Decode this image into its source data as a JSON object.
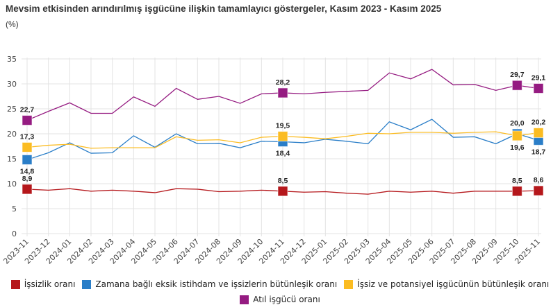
{
  "title": "Mevsim etkisinden arındırılmış işgücüne ilişkin tamamlayıcı göstergeler, Kasım 2023 - Kasım 2025",
  "unit": "(%)",
  "chart_data": {
    "type": "line",
    "title": "Mevsim etkisinden arındırılmış işgücüne ilişkin tamamlayıcı göstergeler, Kasım 2023 - Kasım 2025",
    "ylabel": "(%)",
    "ylim": [
      0,
      35
    ],
    "yticks": [
      0,
      5,
      10,
      15,
      20,
      25,
      30,
      35
    ],
    "grid": true,
    "legend_position": "bottom",
    "x": [
      "2023-11",
      "2023-12",
      "2024-01",
      "2024-02",
      "2024-03",
      "2024-04",
      "2024-05",
      "2024-06",
      "2024-07",
      "2024-08",
      "2024-09",
      "2024-10",
      "2024-11",
      "2024-12",
      "2025-01",
      "2025-02",
      "2025-03",
      "2025-04",
      "2025-05",
      "2025-06",
      "2025-07",
      "2025-08",
      "2025-09",
      "2025-10",
      "2025-11"
    ],
    "labeled_indices": [
      0,
      12,
      23,
      24
    ],
    "series": [
      {
        "name": "İşsizlik oranı",
        "color": "#b5171b",
        "label_side": [
          "above",
          "above",
          "above",
          "above"
        ],
        "values": [
          8.9,
          8.7,
          9.0,
          8.5,
          8.7,
          8.5,
          8.2,
          9.0,
          8.9,
          8.4,
          8.5,
          8.7,
          8.5,
          8.3,
          8.4,
          8.1,
          7.9,
          8.5,
          8.3,
          8.5,
          8.1,
          8.5,
          8.5,
          8.5,
          8.6
        ],
        "labels": [
          "8,9",
          "8,5",
          "8,5",
          "8,6"
        ]
      },
      {
        "name": "Zamana bağlı eksik istihdam ve işsizlerin bütünleşik oranı",
        "color": "#2a7ec8",
        "label_side": [
          "below",
          "below",
          "above",
          "below"
        ],
        "values": [
          14.8,
          16.2,
          18.2,
          16.1,
          16.2,
          19.6,
          17.3,
          20.0,
          18.0,
          18.1,
          17.2,
          18.5,
          18.4,
          18.2,
          18.9,
          18.5,
          18.0,
          22.4,
          20.8,
          22.9,
          19.3,
          19.4,
          18.0,
          20.0,
          18.7
        ],
        "labels": [
          "14,8",
          "18,4",
          "20,0",
          "18,7"
        ]
      },
      {
        "name": "İşsiz ve potansiyel işgücünün bütünleşik oranı",
        "color": "#fbbc22",
        "label_side": [
          "above",
          "above",
          "below",
          "above"
        ],
        "values": [
          17.3,
          17.7,
          17.9,
          17.1,
          17.2,
          17.2,
          17.2,
          19.4,
          18.7,
          18.8,
          18.2,
          19.3,
          19.5,
          19.3,
          19.0,
          19.5,
          20.1,
          20.0,
          20.3,
          20.3,
          20.1,
          20.3,
          20.4,
          19.6,
          20.2
        ],
        "labels": [
          "17,3",
          "19,5",
          "19,6",
          "20,2"
        ]
      },
      {
        "name": "Atıl işgücü oranı",
        "color": "#951b81",
        "label_side": [
          "above",
          "above",
          "above",
          "above"
        ],
        "values": [
          22.7,
          24.5,
          26.2,
          24.1,
          24.1,
          27.4,
          25.5,
          29.1,
          26.9,
          27.5,
          26.1,
          28.0,
          28.2,
          28.0,
          28.3,
          28.5,
          28.7,
          32.2,
          31.0,
          32.9,
          29.8,
          29.9,
          28.7,
          29.7,
          29.1
        ],
        "labels": [
          "22,7",
          "28,2",
          "29,7",
          "29,1"
        ]
      }
    ]
  }
}
